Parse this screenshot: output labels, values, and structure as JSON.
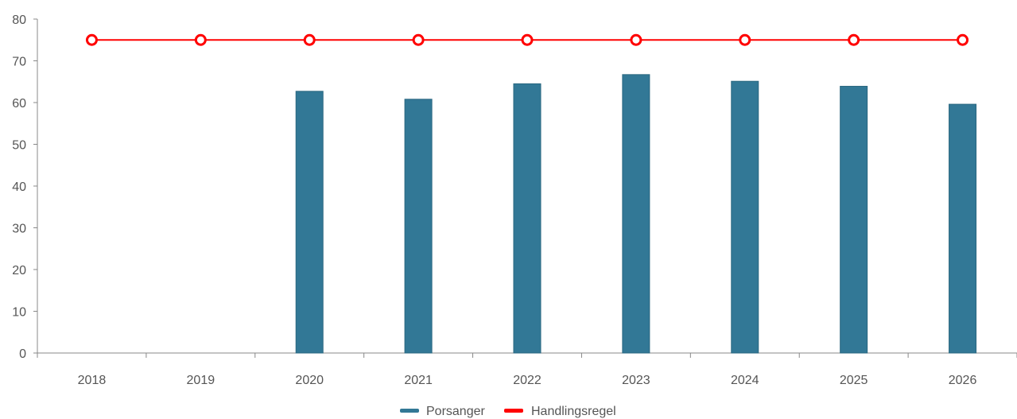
{
  "chart_data": {
    "type": "bar",
    "categories": [
      "2018",
      "2019",
      "2020",
      "2021",
      "2022",
      "2023",
      "2024",
      "2025",
      "2026"
    ],
    "series": [
      {
        "name": "Porsanger",
        "type": "bar",
        "color": "#327896",
        "values": [
          null,
          null,
          62.7,
          60.8,
          64.5,
          66.7,
          65.1,
          63.9,
          59.6
        ]
      },
      {
        "name": "Handlingsregel",
        "type": "line",
        "color": "#ff0000",
        "values": [
          75,
          75,
          75,
          75,
          75,
          75,
          75,
          75,
          75
        ]
      }
    ],
    "y_ticks": [
      "0",
      "10",
      "20",
      "30",
      "40",
      "50",
      "60",
      "70",
      "80"
    ],
    "ylim": [
      0,
      80
    ],
    "title": "",
    "xlabel": "",
    "ylabel": "",
    "grid": false,
    "legend_position": "bottom-center"
  }
}
